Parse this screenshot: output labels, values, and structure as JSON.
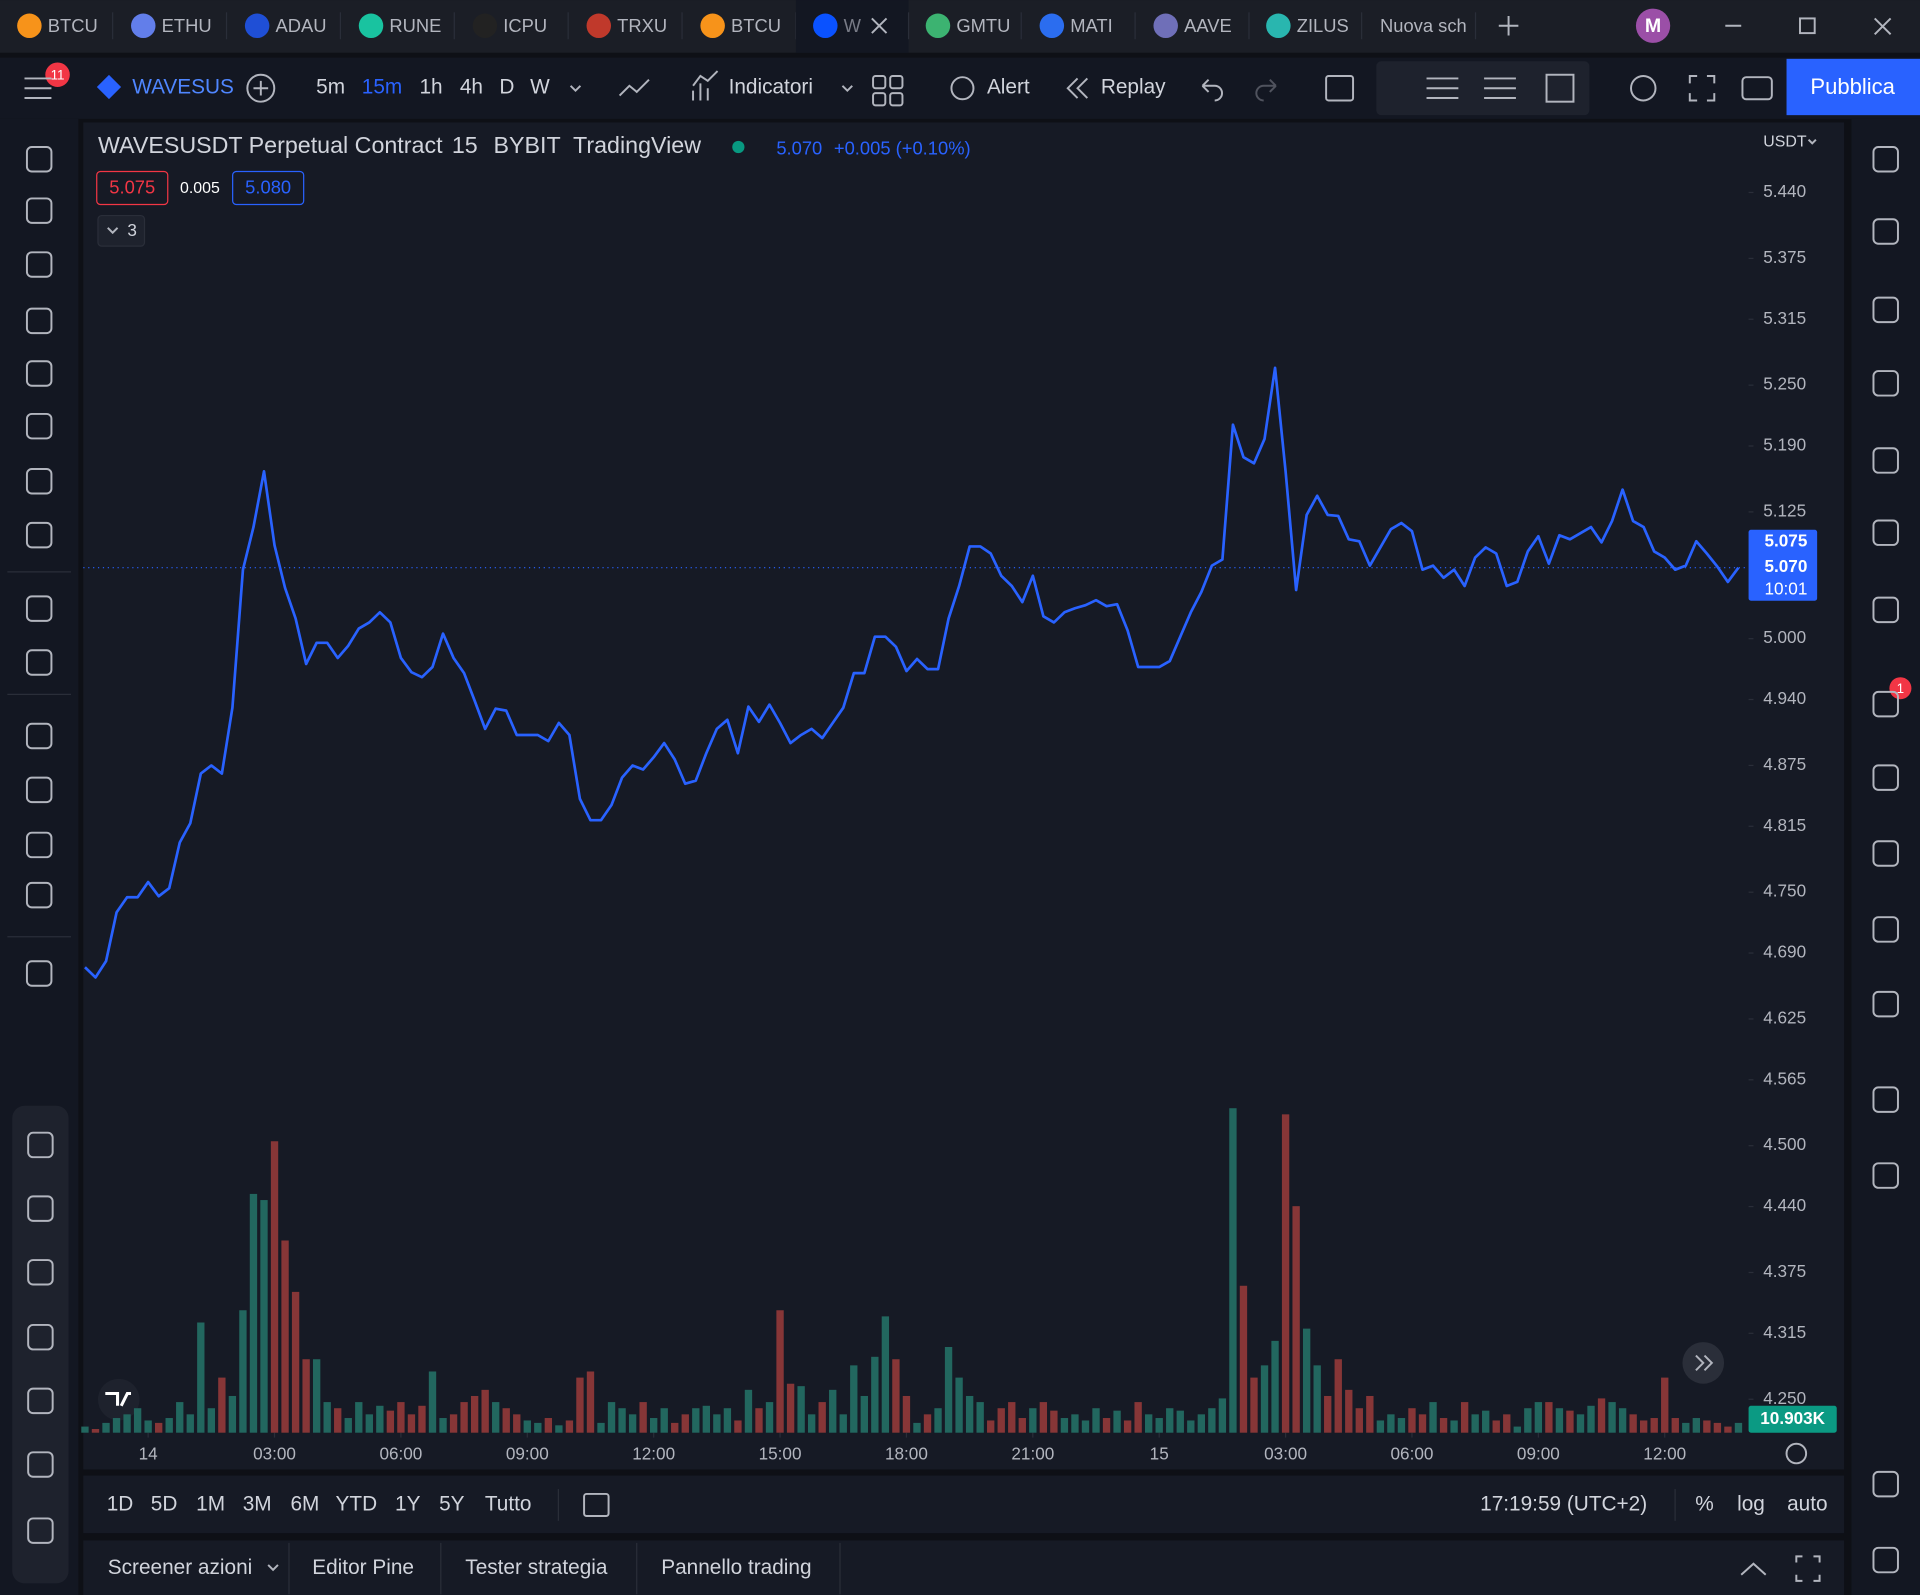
{
  "tabs": [
    "BTCU",
    "ETHU",
    "ADAU",
    "RUNE",
    "ICPU",
    "TRXU",
    "BTCU",
    "W",
    "GMTU",
    "MATI",
    "AAVE",
    "ZILUS",
    "Nuova sch"
  ],
  "menu_badge": "11",
  "avatar": "M",
  "toolbar": {
    "symbol": "WAVESUS",
    "intervals": [
      "5m",
      "15m",
      "1h",
      "4h",
      "D",
      "W"
    ],
    "indicators": "Indicatori",
    "alert": "Alert",
    "replay": "Replay",
    "publish": "Pubblica"
  },
  "legend": {
    "symbol": "WAVESUSDT Perpetual Contract",
    "interval": "15",
    "exchange": "BYBIT",
    "source": "TradingView",
    "last": "5.070",
    "change": "+0.005 (+0.10%)",
    "sell": "5.075",
    "spread": "0.005",
    "buy": "5.080",
    "collapsed": "3"
  },
  "currency": "USDT",
  "chart_data": {
    "type": "line",
    "color": "#2962ff",
    "grid": false,
    "x": [
      -1.5,
      -1.25,
      -1,
      -0.75,
      -0.5,
      -0.25,
      0,
      0.25,
      0.5,
      0.75,
      1,
      1.25,
      1.5,
      1.75,
      2,
      2.25,
      2.5,
      2.75,
      3,
      3.25,
      3.5,
      3.75,
      4,
      4.25,
      4.5,
      4.75,
      5,
      5.25,
      5.5,
      5.75,
      6,
      6.25,
      6.5,
      6.75,
      7,
      7.25,
      7.5,
      7.75,
      8,
      8.25,
      8.5,
      8.75,
      9,
      9.25,
      9.5,
      9.75,
      10,
      10.25,
      10.5,
      10.75,
      11,
      11.25,
      11.5,
      11.75,
      12,
      12.25,
      12.5,
      12.75,
      13,
      13.25,
      13.5,
      13.75,
      14,
      14.25,
      14.5,
      14.75,
      15,
      15.25,
      15.5,
      15.75,
      16,
      16.25,
      16.5,
      16.75,
      17,
      17.25,
      17.5,
      17.75,
      18,
      18.25,
      18.5,
      18.75,
      19,
      19.25,
      19.5,
      19.75,
      20,
      20.25,
      20.5,
      20.75,
      21,
      21.25,
      21.5,
      21.75,
      22,
      22.25,
      22.5,
      22.75,
      23,
      23.25,
      23.5,
      23.75,
      24,
      24.25,
      24.5,
      24.75,
      25,
      25.25,
      25.5,
      25.75,
      26,
      26.25,
      26.5,
      26.75,
      27,
      27.25,
      27.5,
      27.75,
      28,
      28.25,
      28.5,
      28.75,
      29,
      29.25,
      29.5,
      29.75,
      30,
      30.25,
      30.5,
      30.75,
      31,
      31.25,
      31.5,
      31.75,
      32,
      32.25,
      32.5,
      32.75,
      33,
      33.25,
      33.5,
      33.75,
      34,
      34.25,
      34.5,
      34.75,
      35,
      35.25,
      35.5,
      35.75,
      36,
      36.25,
      36.5,
      36.75,
      37,
      37.25,
      37.5,
      37.75
    ],
    "values": [
      4.676,
      4.666,
      4.682,
      4.73,
      4.745,
      4.745,
      4.76,
      4.746,
      4.754,
      4.799,
      4.818,
      4.867,
      4.875,
      4.867,
      4.932,
      5.068,
      5.11,
      5.165,
      5.092,
      5.05,
      5.02,
      4.975,
      4.996,
      4.996,
      4.981,
      4.993,
      5.01,
      5.016,
      5.026,
      5.016,
      4.981,
      4.967,
      4.962,
      4.972,
      5.005,
      4.981,
      4.966,
      4.939,
      4.911,
      4.931,
      4.929,
      4.905,
      4.905,
      4.905,
      4.899,
      4.917,
      4.905,
      4.842,
      4.821,
      4.821,
      4.836,
      4.863,
      4.875,
      4.871,
      4.883,
      4.897,
      4.881,
      4.857,
      4.86,
      4.887,
      4.911,
      4.92,
      4.887,
      4.933,
      4.918,
      4.935,
      4.917,
      4.897,
      4.905,
      4.911,
      4.902,
      4.917,
      4.932,
      4.966,
      4.966,
      5.002,
      5.002,
      4.992,
      4.968,
      4.98,
      4.97,
      4.97,
      5.02,
      5.052,
      5.091,
      5.091,
      5.084,
      5.062,
      5.052,
      5.036,
      5.062,
      5.022,
      5.016,
      5.026,
      5.03,
      5.033,
      5.038,
      5.032,
      5.034,
      5.008,
      4.972,
      4.972,
      4.972,
      4.978,
      5.002,
      5.026,
      5.046,
      5.072,
      5.078,
      5.211,
      5.179,
      5.173,
      5.197,
      5.267,
      5.165,
      5.048,
      5.122,
      5.141,
      5.122,
      5.121,
      5.098,
      5.096,
      5.072,
      5.09,
      5.108,
      5.114,
      5.106,
      5.068,
      5.072,
      5.06,
      5.068,
      5.052,
      5.08,
      5.09,
      5.084,
      5.052,
      5.056,
      5.086,
      5.101,
      5.074,
      5.102,
      5.098,
      5.104,
      5.11,
      5.095,
      5.116,
      5.147,
      5.116,
      5.11,
      5.086,
      5.08,
      5.068,
      5.072,
      5.096,
      5.084,
      5.071,
      5.056,
      5.07
    ],
    "xlim": [
      -1.54,
      37.99
    ],
    "xticks": [
      {
        "value": 0,
        "label": "14"
      },
      {
        "value": 3,
        "label": "03:00"
      },
      {
        "value": 6,
        "label": "06:00"
      },
      {
        "value": 9,
        "label": "09:00"
      },
      {
        "value": 12,
        "label": "12:00"
      },
      {
        "value": 15,
        "label": "15:00"
      },
      {
        "value": 18,
        "label": "18:00"
      },
      {
        "value": 21,
        "label": "21:00"
      },
      {
        "value": 24,
        "label": "15"
      },
      {
        "value": 27,
        "label": "03:00"
      },
      {
        "value": 30,
        "label": "06:00"
      },
      {
        "value": 33,
        "label": "09:00"
      },
      {
        "value": 36,
        "label": "12:00"
      }
    ],
    "ylim": [
      4.217,
      5.509
    ],
    "yticks": [
      {
        "value": 5.44,
        "label": "5.440"
      },
      5.375,
      5.315,
      {
        "value": 5.25,
        "label": "5.250"
      },
      {
        "value": 5.19,
        "label": "5.190"
      },
      5.125,
      {
        "value": 5,
        "label": "5.000"
      },
      {
        "value": 4.94,
        "label": "4.940"
      },
      4.875,
      4.815,
      {
        "value": 4.75,
        "label": "4.750"
      },
      {
        "value": 4.69,
        "label": "4.690"
      },
      4.625,
      4.565,
      {
        "value": 4.5,
        "label": "4.500"
      },
      {
        "value": 4.44,
        "label": "4.440"
      },
      4.375,
      4.315,
      {
        "value": 4.25,
        "label": "4.250"
      }
    ],
    "volume": {
      "values": [
        6.8,
        4.1,
        10.9,
        16.3,
        20.4,
        27.2,
        13.6,
        10.9,
        16.3,
        34,
        20.4,
        122.4,
        27.2,
        61.2,
        40.8,
        136,
        265.2,
        258.4,
        323.7,
        213.5,
        156.4,
        81.6,
        81.6,
        34,
        27.2,
        16.3,
        34,
        20.4,
        29.9,
        24.5,
        34,
        20.4,
        29.9,
        68,
        16.3,
        20.4,
        34,
        40.8,
        47.6,
        34,
        27.2,
        20.4,
        13.6,
        10.9,
        16.3,
        8.2,
        13.6,
        61.2,
        68,
        10.9,
        34,
        27.2,
        20.4,
        34,
        16.3,
        27.2,
        10.9,
        20.4,
        27.2,
        29.9,
        20.4,
        27.2,
        13.6,
        47.6,
        27.2,
        34,
        136,
        54.4,
        51.7,
        20.4,
        34,
        47.6,
        20.4,
        74.8,
        40.8,
        84.3,
        129.2,
        81.6,
        40.8,
        10.9,
        20.4,
        27.2,
        95.2,
        61.2,
        40.8,
        34,
        13.6,
        27.2,
        34,
        16.3,
        27.2,
        34,
        24.5,
        16.3,
        20.4,
        13.6,
        27.2,
        16.3,
        24.5,
        13.6,
        34,
        20.4,
        16.3,
        27.2,
        24.5,
        13.6,
        20.4,
        27.2,
        38.1,
        360.4,
        163.2,
        61.2,
        74.8,
        102,
        353.6,
        251.6,
        115.6,
        74.8,
        40.8,
        81.6,
        47.6,
        27.2,
        40.8,
        13.6,
        20.4,
        16.3,
        27.2,
        20.4,
        34,
        16.3,
        13.6,
        34,
        20.4,
        24.5,
        13.6,
        20.4,
        6.8,
        27.2,
        34,
        34,
        27.2,
        24.5,
        20.4,
        29.9,
        38.1,
        34,
        27.2,
        20.4,
        13.6,
        16.3,
        61.2,
        16.3,
        10.9,
        16.3,
        13.6,
        10.9,
        6.8,
        10.903
      ],
      "vlim": [
        0,
        408
      ],
      "up_color": "#22675f",
      "down_color": "#873637"
    },
    "price_labels": {
      "sell": "5.075",
      "last": "5.070",
      "countdown": "10:01",
      "volume": "10.903K"
    }
  },
  "ranges": [
    "1D",
    "5D",
    "1M",
    "3M",
    "6M",
    "YTD",
    "1Y",
    "5Y",
    "Tutto"
  ],
  "clock": "17:19:59 (UTC+2)",
  "scale_options": [
    "%",
    "log",
    "auto"
  ],
  "bottom_tabs": [
    "Screener azioni",
    "Editor Pine",
    "Tester strategia",
    "Pannello trading"
  ],
  "chat_badge": "1"
}
